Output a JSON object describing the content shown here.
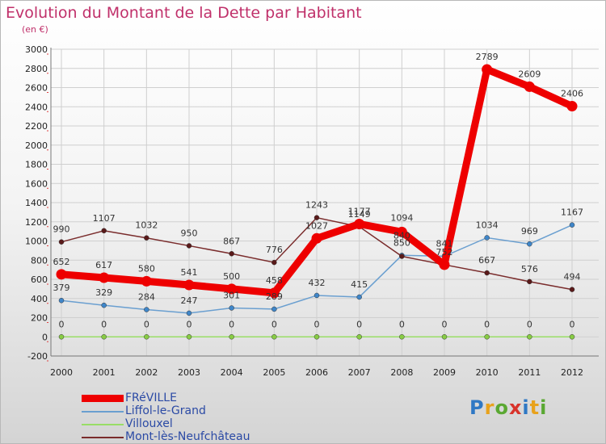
{
  "title": "Evolution du Montant de la Dette par Habitant",
  "subtitle": "(en €)",
  "logo": {
    "letters": [
      "P",
      "r",
      "o",
      "x",
      "i",
      "t",
      "i"
    ],
    "colors": [
      "#2f78c4",
      "#e8a21c",
      "#5aa832",
      "#d8332b",
      "#2f78c4",
      "#e8a21c",
      "#5aa832"
    ]
  },
  "chart_data": {
    "type": "line",
    "x": [
      "2000",
      "2001",
      "2002",
      "2003",
      "2004",
      "2005",
      "2006",
      "2007",
      "2008",
      "2009",
      "2010",
      "2011",
      "2012"
    ],
    "ylim": [
      -200,
      3000
    ],
    "yticks": [
      "-200",
      "0",
      "200",
      "400",
      "600",
      "800",
      "1000",
      "1200",
      "1400",
      "1600",
      "1800",
      "2000",
      "2200",
      "2400",
      "2600",
      "2800",
      "3000"
    ],
    "grid": true,
    "legend_position": "bottom-left",
    "series": [
      {
        "name": "FRéVILLE",
        "color": "#ee0000",
        "emphasis": true,
        "values": [
          652,
          617,
          580,
          541,
          500,
          458,
          1027,
          1177,
          1094,
          752,
          2789,
          2609,
          2406
        ],
        "labels": [
          "652",
          "617",
          "580",
          "541",
          "500",
          "458",
          "1027",
          "1177",
          "1094",
          "752",
          "2789",
          "2609",
          "2406"
        ]
      },
      {
        "name": "Liffol-le-Grand",
        "color": "#6a9fd0",
        "marker": "#3f86c9",
        "values": [
          379,
          329,
          284,
          247,
          301,
          289,
          432,
          415,
          850,
          841,
          1034,
          969,
          1167
        ],
        "labels": [
          "379",
          "329",
          "284",
          "247",
          "301",
          "289",
          "432",
          "415",
          "850",
          "841",
          "1034",
          "969",
          "1167"
        ]
      },
      {
        "name": "Villouxel",
        "color": "#99dd66",
        "marker": "#88cc44",
        "values": [
          0,
          0,
          0,
          0,
          0,
          0,
          0,
          0,
          0,
          0,
          0,
          0,
          0
        ],
        "labels": [
          "0",
          "0",
          "0",
          "0",
          "0",
          "0",
          "0",
          "0",
          "0",
          "0",
          "0",
          "0",
          "0"
        ]
      },
      {
        "name": "Mont-lès-Neufchâteau",
        "color": "#7a2c2c",
        "marker": "#5a1a1a",
        "values": [
          990,
          1107,
          1032,
          950,
          867,
          776,
          1243,
          1149,
          840,
          752,
          667,
          576,
          494
        ],
        "labels": [
          "990",
          "1107",
          "1032",
          "950",
          "867",
          "776",
          "1243",
          "1149",
          "840",
          "",
          "667",
          "576",
          "494"
        ]
      }
    ]
  }
}
